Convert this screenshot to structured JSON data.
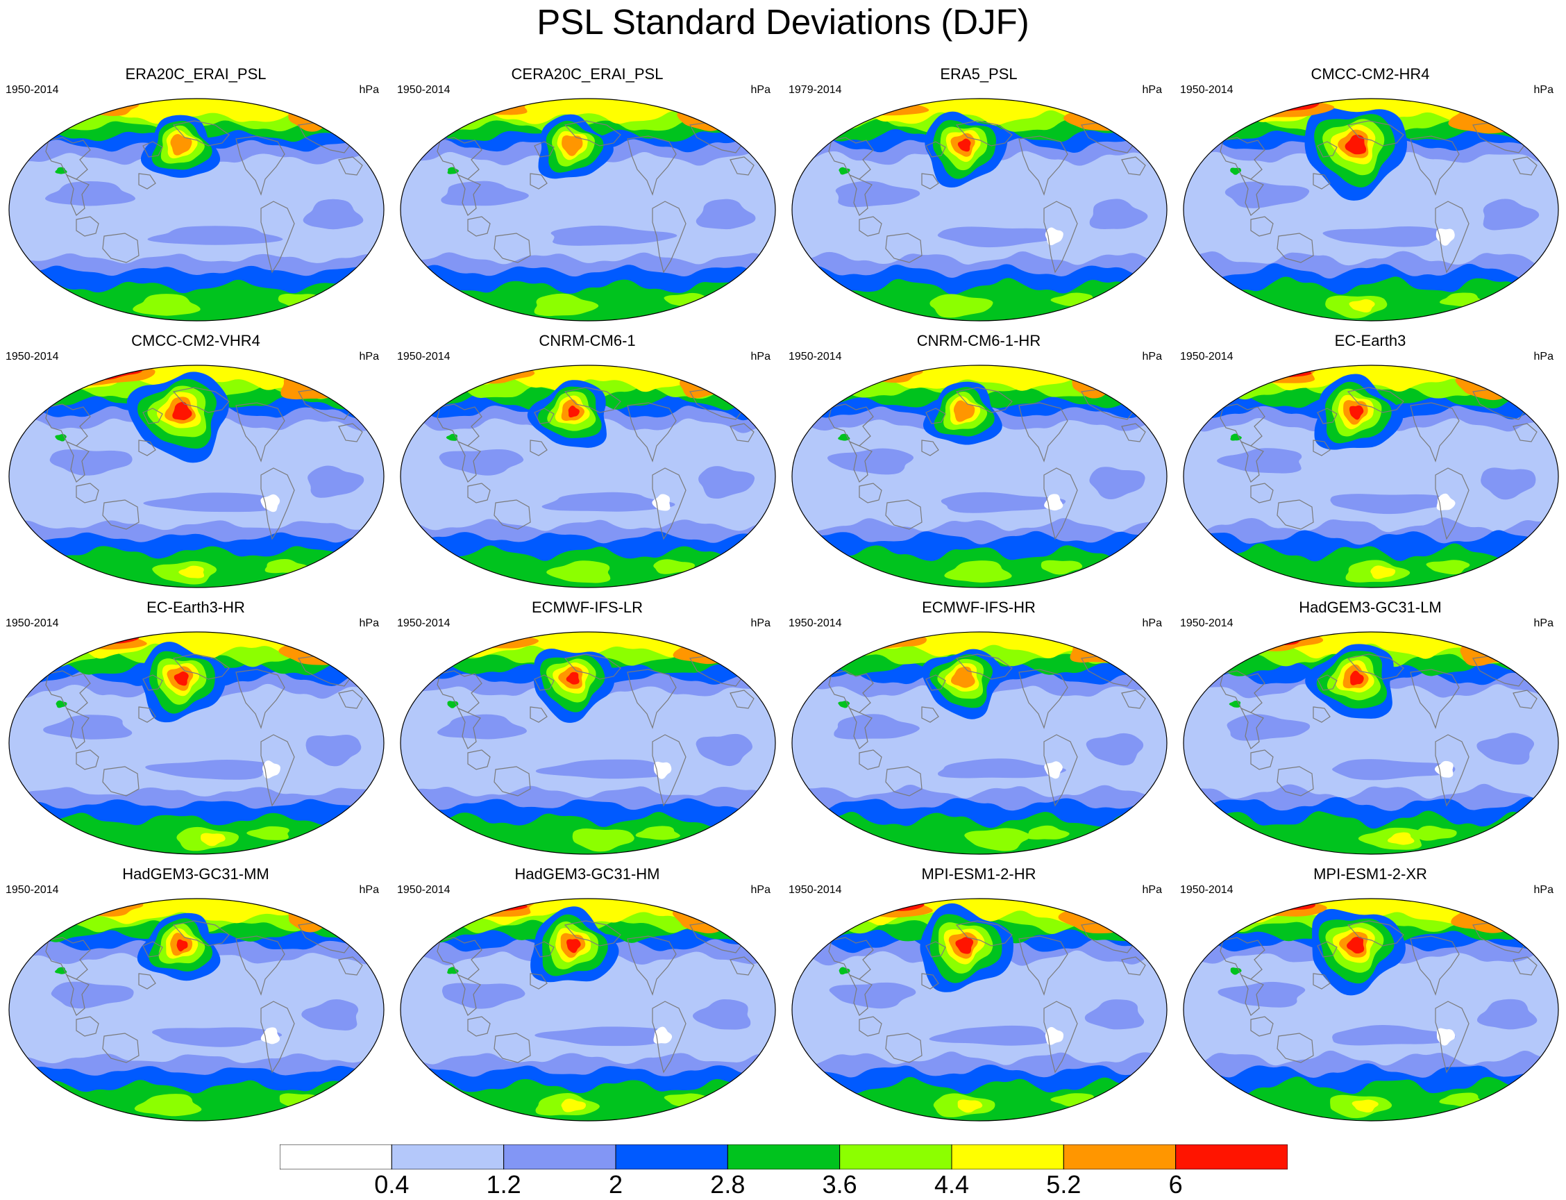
{
  "title": "PSL Standard Deviations (DJF)",
  "panels": [
    {
      "name": "ERA20C_ERAI_PSL",
      "period": "1950-2014",
      "units": "hPa",
      "rel": 0.85,
      "cap": 5
    },
    {
      "name": "CERA20C_ERAI_PSL",
      "period": "1950-2014",
      "units": "hPa",
      "rel": 0.85,
      "cap": 5
    },
    {
      "name": "ERA5_PSL",
      "period": "1979-2014",
      "units": "hPa",
      "rel": 0.95,
      "cap": 6
    },
    {
      "name": "CMCC-CM2-HR4",
      "period": "1950-2014",
      "units": "hPa",
      "rel": 1.2,
      "cap": 6
    },
    {
      "name": "CMCC-CM2-VHR4",
      "period": "1950-2014",
      "units": "hPa",
      "rel": 1.15,
      "cap": 6
    },
    {
      "name": "CNRM-CM6-1",
      "period": "1950-2014",
      "units": "hPa",
      "rel": 0.9,
      "cap": 6
    },
    {
      "name": "CNRM-CM6-1-HR",
      "period": "1950-2014",
      "units": "hPa",
      "rel": 0.85,
      "cap": 5
    },
    {
      "name": "EC-Earth3",
      "period": "1950-2014",
      "units": "hPa",
      "rel": 1.0,
      "cap": 6
    },
    {
      "name": "EC-Earth3-HR",
      "period": "1950-2014",
      "units": "hPa",
      "rel": 1.0,
      "cap": 6
    },
    {
      "name": "ECMWF-IFS-LR",
      "period": "1950-2014",
      "units": "hPa",
      "rel": 0.95,
      "cap": 6
    },
    {
      "name": "ECMWF-IFS-HR",
      "period": "1950-2014",
      "units": "hPa",
      "rel": 0.9,
      "cap": 5
    },
    {
      "name": "HadGEM3-GC31-LM",
      "period": "1950-2014",
      "units": "hPa",
      "rel": 1.0,
      "cap": 6
    },
    {
      "name": "HadGEM3-GC31-MM",
      "period": "1950-2014",
      "units": "hPa",
      "rel": 0.9,
      "cap": 6
    },
    {
      "name": "HadGEM3-GC31-HM",
      "period": "1950-2014",
      "units": "hPa",
      "rel": 1.0,
      "cap": 6
    },
    {
      "name": "MPI-ESM1-2-HR",
      "period": "1950-2014",
      "units": "hPa",
      "rel": 1.1,
      "cap": 6
    },
    {
      "name": "MPI-ESM1-2-XR",
      "period": "1950-2014",
      "units": "hPa",
      "rel": 1.1,
      "cap": 6
    }
  ],
  "colorbar": {
    "colors": [
      "#ffffff",
      "#b4c8fa",
      "#8296f5",
      "#005aff",
      "#00c31e",
      "#8cff00",
      "#ffff00",
      "#ff9600",
      "#ff1400"
    ],
    "labels": [
      "0.4",
      "1.2",
      "2",
      "2.8",
      "3.6",
      "4.4",
      "5.2",
      "6"
    ]
  }
}
